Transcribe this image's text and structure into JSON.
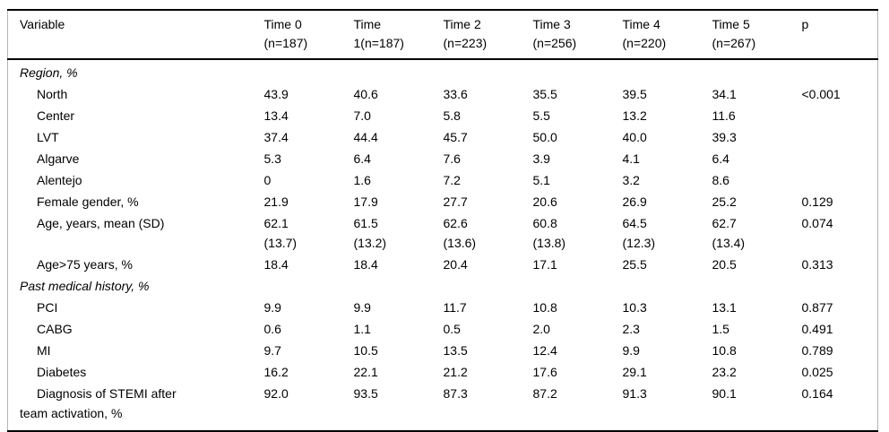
{
  "page": {
    "background_color": "#ffffff",
    "text_color": "#000000",
    "rule_color": "#000000",
    "side_border_color": "#b4b4b4"
  },
  "table": {
    "columns": [
      "Variable",
      "Time 0\n(n=187)",
      "Time\n1(n=187)",
      "Time 2\n(n=223)",
      "Time 3\n(n=256)",
      "Time 4\n(n=220)",
      "Time 5\n(n=267)",
      "p"
    ],
    "rows": [
      {
        "type": "section",
        "label": "Region, %",
        "values": [
          "",
          "",
          "",
          "",
          "",
          ""
        ],
        "p": ""
      },
      {
        "type": "item",
        "label": "North",
        "values": [
          "43.9",
          "40.6",
          "33.6",
          "35.5",
          "39.5",
          "34.1"
        ],
        "p": "<0.001"
      },
      {
        "type": "item",
        "label": "Center",
        "values": [
          "13.4",
          "7.0",
          "5.8",
          "5.5",
          "13.2",
          "11.6"
        ],
        "p": ""
      },
      {
        "type": "item",
        "label": "LVT",
        "values": [
          "37.4",
          "44.4",
          "45.7",
          "50.0",
          "40.0",
          "39.3"
        ],
        "p": ""
      },
      {
        "type": "item",
        "label": "Algarve",
        "values": [
          "5.3",
          "6.4",
          "7.6",
          "3.9",
          "4.1",
          "6.4"
        ],
        "p": ""
      },
      {
        "type": "item",
        "label": "Alentejo",
        "values": [
          "0",
          "1.6",
          "7.2",
          "5.1",
          "3.2",
          "8.6"
        ],
        "p": ""
      },
      {
        "type": "item",
        "label": "Female gender, %",
        "values": [
          "21.9",
          "17.9",
          "27.7",
          "20.6",
          "26.9",
          "25.2"
        ],
        "p": "0.129"
      },
      {
        "type": "item",
        "label": "Age, years, mean (SD)",
        "values": [
          "62.1\n(13.7)",
          "61.5\n(13.2)",
          "62.6\n(13.6)",
          "60.8\n(13.8)",
          "64.5\n(12.3)",
          "62.7\n(13.4)"
        ],
        "p": "0.074"
      },
      {
        "type": "item",
        "label": "Age>75 years, %",
        "values": [
          "18.4",
          "18.4",
          "20.4",
          "17.1",
          "25.5",
          "20.5"
        ],
        "p": "0.313"
      },
      {
        "type": "section",
        "label": "Past medical history, %",
        "values": [
          "",
          "",
          "",
          "",
          "",
          ""
        ],
        "p": ""
      },
      {
        "type": "item",
        "label": "PCI",
        "values": [
          "9.9",
          "9.9",
          "11.7",
          "10.8",
          "10.3",
          "13.1"
        ],
        "p": "0.877"
      },
      {
        "type": "item",
        "label": "CABG",
        "values": [
          "0.6",
          "1.1",
          "0.5",
          "2.0",
          "2.3",
          "1.5"
        ],
        "p": "0.491"
      },
      {
        "type": "item",
        "label": "MI",
        "values": [
          "9.7",
          "10.5",
          "13.5",
          "12.4",
          "9.9",
          "10.8"
        ],
        "p": "0.789"
      },
      {
        "type": "item",
        "label": "Diabetes",
        "values": [
          "16.2",
          "22.1",
          "21.2",
          "17.6",
          "29.1",
          "23.2"
        ],
        "p": "0.025"
      },
      {
        "type": "item",
        "label": "Diagnosis of STEMI after\nteam activation, %",
        "values": [
          "92.0",
          "93.5",
          "87.3",
          "87.2",
          "91.3",
          "90.1"
        ],
        "p": "0.164"
      }
    ]
  }
}
